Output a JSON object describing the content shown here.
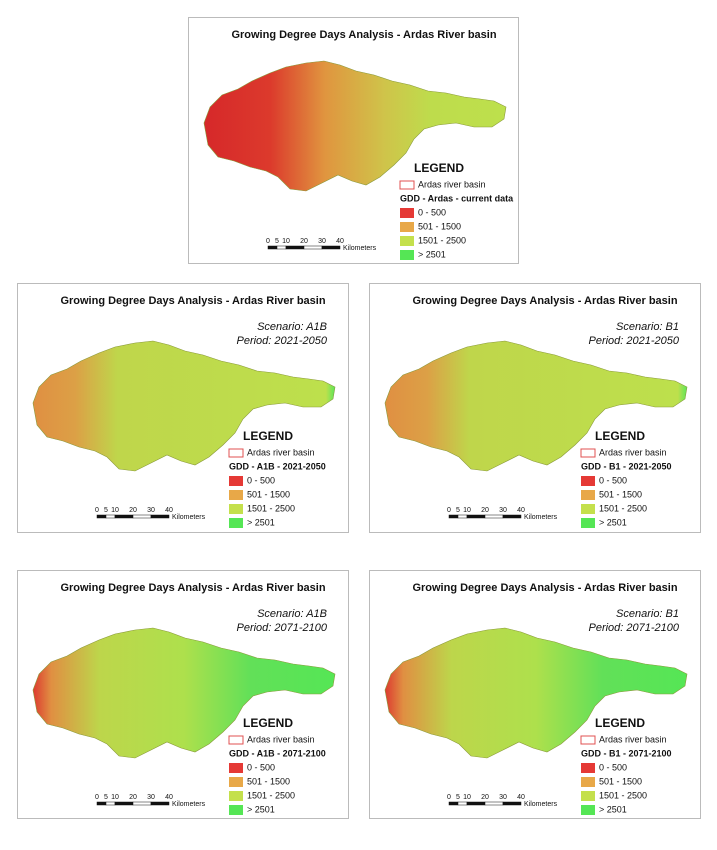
{
  "panels": [
    {
      "title": "Growing Degree Days Analysis - Ardas River basin",
      "legend": {
        "title": "LEGEND",
        "basin_label": "Ardas river basin",
        "heading": "GDD - Ardas - current data",
        "classes": [
          {
            "label": "0 - 500",
            "color": "#e53935"
          },
          {
            "label": "501 - 1500",
            "color": "#e8a848"
          },
          {
            "label": "1501 - 2500",
            "color": "#c4e04c"
          },
          {
            "label": "> 2501",
            "color": "#55e655"
          }
        ]
      },
      "scale": {
        "ticks": [
          0,
          5,
          10,
          20,
          30,
          40
        ],
        "unit": "Kilometers"
      }
    },
    {
      "title": "Growing Degree Days Analysis - Ardas River basin",
      "scenario": "Scenario: A1B",
      "period": "Period: 2021-2050",
      "legend": {
        "title": "LEGEND",
        "basin_label": "Ardas river basin",
        "heading": "GDD - A1B - 2021-2050",
        "classes": [
          {
            "label": "0 - 500",
            "color": "#e53935"
          },
          {
            "label": "501 - 1500",
            "color": "#e8a848"
          },
          {
            "label": "1501 - 2500",
            "color": "#c4e04c"
          },
          {
            "label": "> 2501",
            "color": "#55e655"
          }
        ]
      },
      "scale": {
        "ticks": [
          0,
          5,
          10,
          20,
          30,
          40
        ],
        "unit": "Kilometers"
      }
    },
    {
      "title": "Growing Degree Days Analysis - Ardas River basin",
      "scenario": "Scenario: B1",
      "period": "Period: 2021-2050",
      "legend": {
        "title": "LEGEND",
        "basin_label": "Ardas river basin",
        "heading": "GDD - B1 - 2021-2050",
        "classes": [
          {
            "label": "0 - 500",
            "color": "#e53935"
          },
          {
            "label": "501 - 1500",
            "color": "#e8a848"
          },
          {
            "label": "1501 - 2500",
            "color": "#c4e04c"
          },
          {
            "label": "> 2501",
            "color": "#55e655"
          }
        ]
      },
      "scale": {
        "ticks": [
          0,
          5,
          10,
          20,
          30,
          40
        ],
        "unit": "Kilometers"
      }
    },
    {
      "title": "Growing Degree Days Analysis - Ardas River basin",
      "scenario": "Scenario: A1B",
      "period": "Period: 2071-2100",
      "legend": {
        "title": "LEGEND",
        "basin_label": "Ardas river basin",
        "heading": "GDD - A1B - 2071-2100",
        "classes": [
          {
            "label": "0 - 500",
            "color": "#e53935"
          },
          {
            "label": "501 - 1500",
            "color": "#e8a848"
          },
          {
            "label": "1501 - 2500",
            "color": "#c4e04c"
          },
          {
            "label": "> 2501",
            "color": "#55e655"
          }
        ]
      },
      "scale": {
        "ticks": [
          0,
          5,
          10,
          20,
          30,
          40
        ],
        "unit": "Kilometers"
      }
    },
    {
      "title": "Growing Degree Days Analysis - Ardas River basin",
      "scenario": "Scenario: B1",
      "period": "Period: 2071-2100",
      "legend": {
        "title": "LEGEND",
        "basin_label": "Ardas river basin",
        "heading": "GDD - B1 - 2071-2100",
        "classes": [
          {
            "label": "0 - 500",
            "color": "#e53935"
          },
          {
            "label": "501 - 1500",
            "color": "#e8a848"
          },
          {
            "label": "1501 - 2500",
            "color": "#c4e04c"
          },
          {
            "label": "> 2501",
            "color": "#55e655"
          }
        ]
      },
      "scale": {
        "ticks": [
          0,
          5,
          10,
          20,
          30,
          40
        ],
        "unit": "Kilometers"
      }
    }
  ]
}
